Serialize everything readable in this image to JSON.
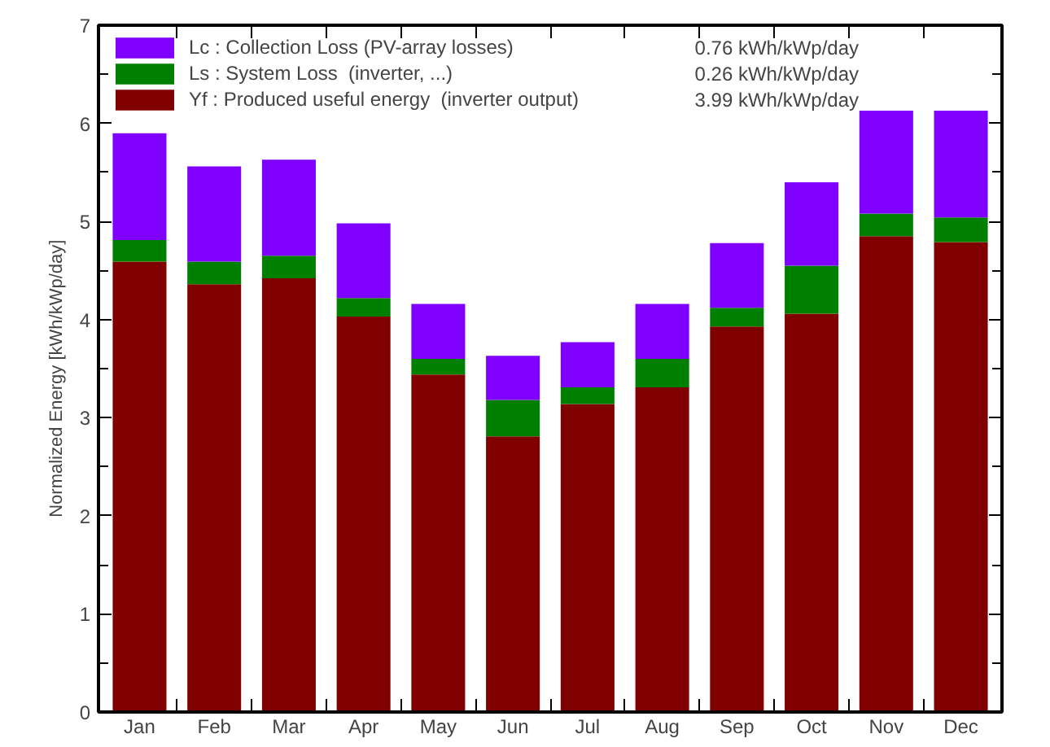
{
  "chart_data": {
    "type": "bar",
    "stacked": true,
    "ylabel": "Normalized   Energy   [kWh/kWp/day]",
    "categories": [
      "Jan",
      "Feb",
      "Mar",
      "Apr",
      "May",
      "Jun",
      "Jul",
      "Aug",
      "Sep",
      "Oct",
      "Nov",
      "Dec"
    ],
    "series": [
      {
        "name": "Yf : Produced useful energy  (inverter output)",
        "color": "#800000",
        "values": [
          4.59,
          4.36,
          4.42,
          4.03,
          3.44,
          2.81,
          3.14,
          3.31,
          3.93,
          4.06,
          4.85,
          4.79
        ]
      },
      {
        "name": "Ls : System Loss  (inverter, ...)",
        "color": "#008000",
        "values": [
          0.22,
          0.23,
          0.23,
          0.19,
          0.16,
          0.37,
          0.17,
          0.29,
          0.19,
          0.49,
          0.23,
          0.25
        ]
      },
      {
        "name": "Lc : Collection Loss (PV-array losses)",
        "color": "#8000ff",
        "values": [
          1.09,
          0.97,
          0.98,
          0.76,
          0.56,
          0.45,
          0.46,
          0.56,
          0.66,
          0.85,
          1.05,
          1.09
        ]
      }
    ],
    "annotations": [
      "0.76 kWh/kWp/day",
      "0.26 kWh/kWp/day",
      "3.99 kWh/kWp/day"
    ],
    "ylim": [
      0,
      7
    ],
    "yticks": [
      0,
      1,
      2,
      3,
      4,
      5,
      6,
      7
    ],
    "grid": false,
    "legend": "top left"
  }
}
